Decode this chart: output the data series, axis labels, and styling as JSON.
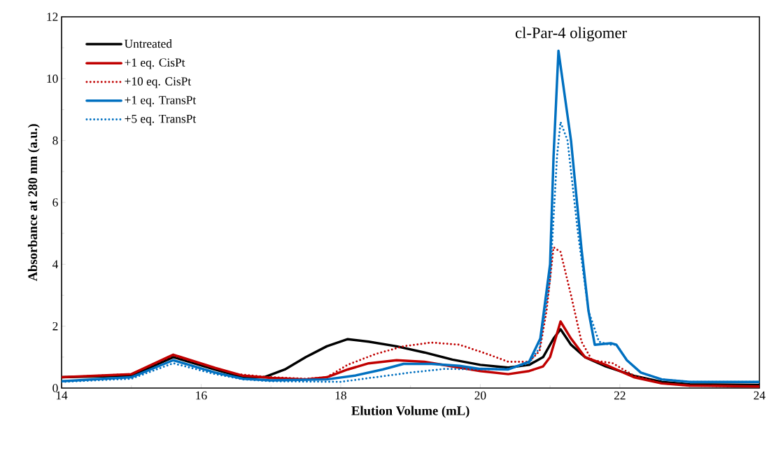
{
  "chart_data": {
    "type": "line",
    "xlabel": "Elution Volume (mL)",
    "ylabel": "Absorbance at 280 nm (a.u.)",
    "xlim": [
      14,
      24
    ],
    "ylim": [
      0,
      12
    ],
    "xticks": [
      14,
      16,
      18,
      20,
      22,
      24
    ],
    "yticks": [
      0,
      2,
      4,
      6,
      8,
      10,
      12
    ],
    "legend": "top left",
    "marker": "none",
    "grid": false,
    "annotations": [
      "cl-Par-4 oligomer"
    ],
    "series": [
      {
        "name": "Untreated",
        "color": "#000000",
        "line_style": "solid",
        "x": [
          14,
          15,
          15.6,
          16.2,
          16.6,
          16.9,
          17.2,
          17.5,
          17.8,
          18.1,
          18.4,
          18.8,
          19.2,
          19.6,
          20.0,
          20.4,
          20.7,
          20.9,
          21.05,
          21.15,
          21.3,
          21.5,
          21.8,
          22.2,
          22.6,
          23,
          24
        ],
        "values": [
          0.35,
          0.4,
          1.0,
          0.6,
          0.35,
          0.35,
          0.6,
          1.0,
          1.35,
          1.58,
          1.5,
          1.35,
          1.15,
          0.92,
          0.75,
          0.66,
          0.75,
          1.0,
          1.6,
          1.9,
          1.4,
          1.0,
          0.7,
          0.4,
          0.2,
          0.12,
          0.1
        ]
      },
      {
        "name": "+1 eq. CisPt",
        "color": "#c00000",
        "line_style": "solid",
        "x": [
          14,
          15,
          15.6,
          16.2,
          16.6,
          17,
          17.5,
          17.8,
          18.1,
          18.4,
          18.8,
          19.2,
          19.6,
          20,
          20.4,
          20.7,
          20.9,
          21.0,
          21.15,
          21.3,
          21.5,
          21.8,
          22.2,
          22.6,
          23,
          24
        ],
        "values": [
          0.35,
          0.45,
          1.08,
          0.65,
          0.4,
          0.33,
          0.28,
          0.35,
          0.6,
          0.8,
          0.9,
          0.85,
          0.7,
          0.55,
          0.45,
          0.55,
          0.7,
          1.0,
          2.15,
          1.6,
          1.0,
          0.75,
          0.35,
          0.15,
          0.08,
          0.05
        ]
      },
      {
        "name": "+10 eq. CisPt",
        "color": "#c00000",
        "line_style": "dotted",
        "x": [
          14,
          15,
          15.6,
          16.5,
          17,
          17.5,
          17.8,
          18.1,
          18.5,
          18.9,
          19.3,
          19.7,
          20.1,
          20.4,
          20.7,
          20.85,
          20.95,
          21.05,
          21.15,
          21.3,
          21.45,
          21.6,
          21.9,
          22.2,
          22.6,
          23,
          24
        ],
        "values": [
          0.35,
          0.45,
          1.05,
          0.45,
          0.35,
          0.3,
          0.35,
          0.75,
          1.1,
          1.35,
          1.47,
          1.4,
          1.1,
          0.85,
          0.85,
          1.2,
          2.5,
          4.55,
          4.4,
          3.0,
          1.5,
          0.9,
          0.8,
          0.4,
          0.15,
          0.08,
          0.05
        ]
      },
      {
        "name": "+1 eq. TransPt",
        "color": "#0070c0",
        "line_style": "solid",
        "x": [
          14,
          15,
          15.6,
          16.2,
          16.6,
          17,
          17.8,
          18.2,
          18.6,
          18.9,
          19.3,
          19.7,
          20.0,
          20.4,
          20.7,
          20.86,
          21.0,
          21.05,
          21.12,
          21.3,
          21.45,
          21.55,
          21.64,
          21.87,
          21.95,
          22.1,
          22.3,
          22.6,
          23,
          24
        ],
        "values": [
          0.22,
          0.35,
          0.9,
          0.5,
          0.3,
          0.25,
          0.28,
          0.4,
          0.6,
          0.78,
          0.78,
          0.72,
          0.62,
          0.6,
          0.85,
          1.6,
          4.0,
          7.5,
          10.9,
          8.0,
          4.5,
          2.5,
          1.4,
          1.45,
          1.4,
          0.9,
          0.5,
          0.28,
          0.2,
          0.2
        ]
      },
      {
        "name": "+5 eq. TransPt",
        "color": "#0070c0",
        "line_style": "dotted",
        "x": [
          14,
          15,
          15.6,
          16.2,
          16.6,
          17,
          18,
          18.5,
          19,
          19.5,
          20,
          20.4,
          20.7,
          20.85,
          21.0,
          21.1,
          21.15,
          21.25,
          21.4,
          21.55,
          21.7,
          21.85,
          21.95,
          22.1,
          22.3,
          22.6,
          23,
          24
        ],
        "values": [
          0.2,
          0.3,
          0.8,
          0.45,
          0.28,
          0.22,
          0.2,
          0.35,
          0.5,
          0.62,
          0.6,
          0.62,
          0.8,
          1.3,
          3.5,
          7.5,
          8.6,
          8.0,
          5.0,
          2.5,
          1.5,
          1.4,
          1.4,
          0.9,
          0.5,
          0.28,
          0.2,
          0.2
        ]
      }
    ]
  }
}
